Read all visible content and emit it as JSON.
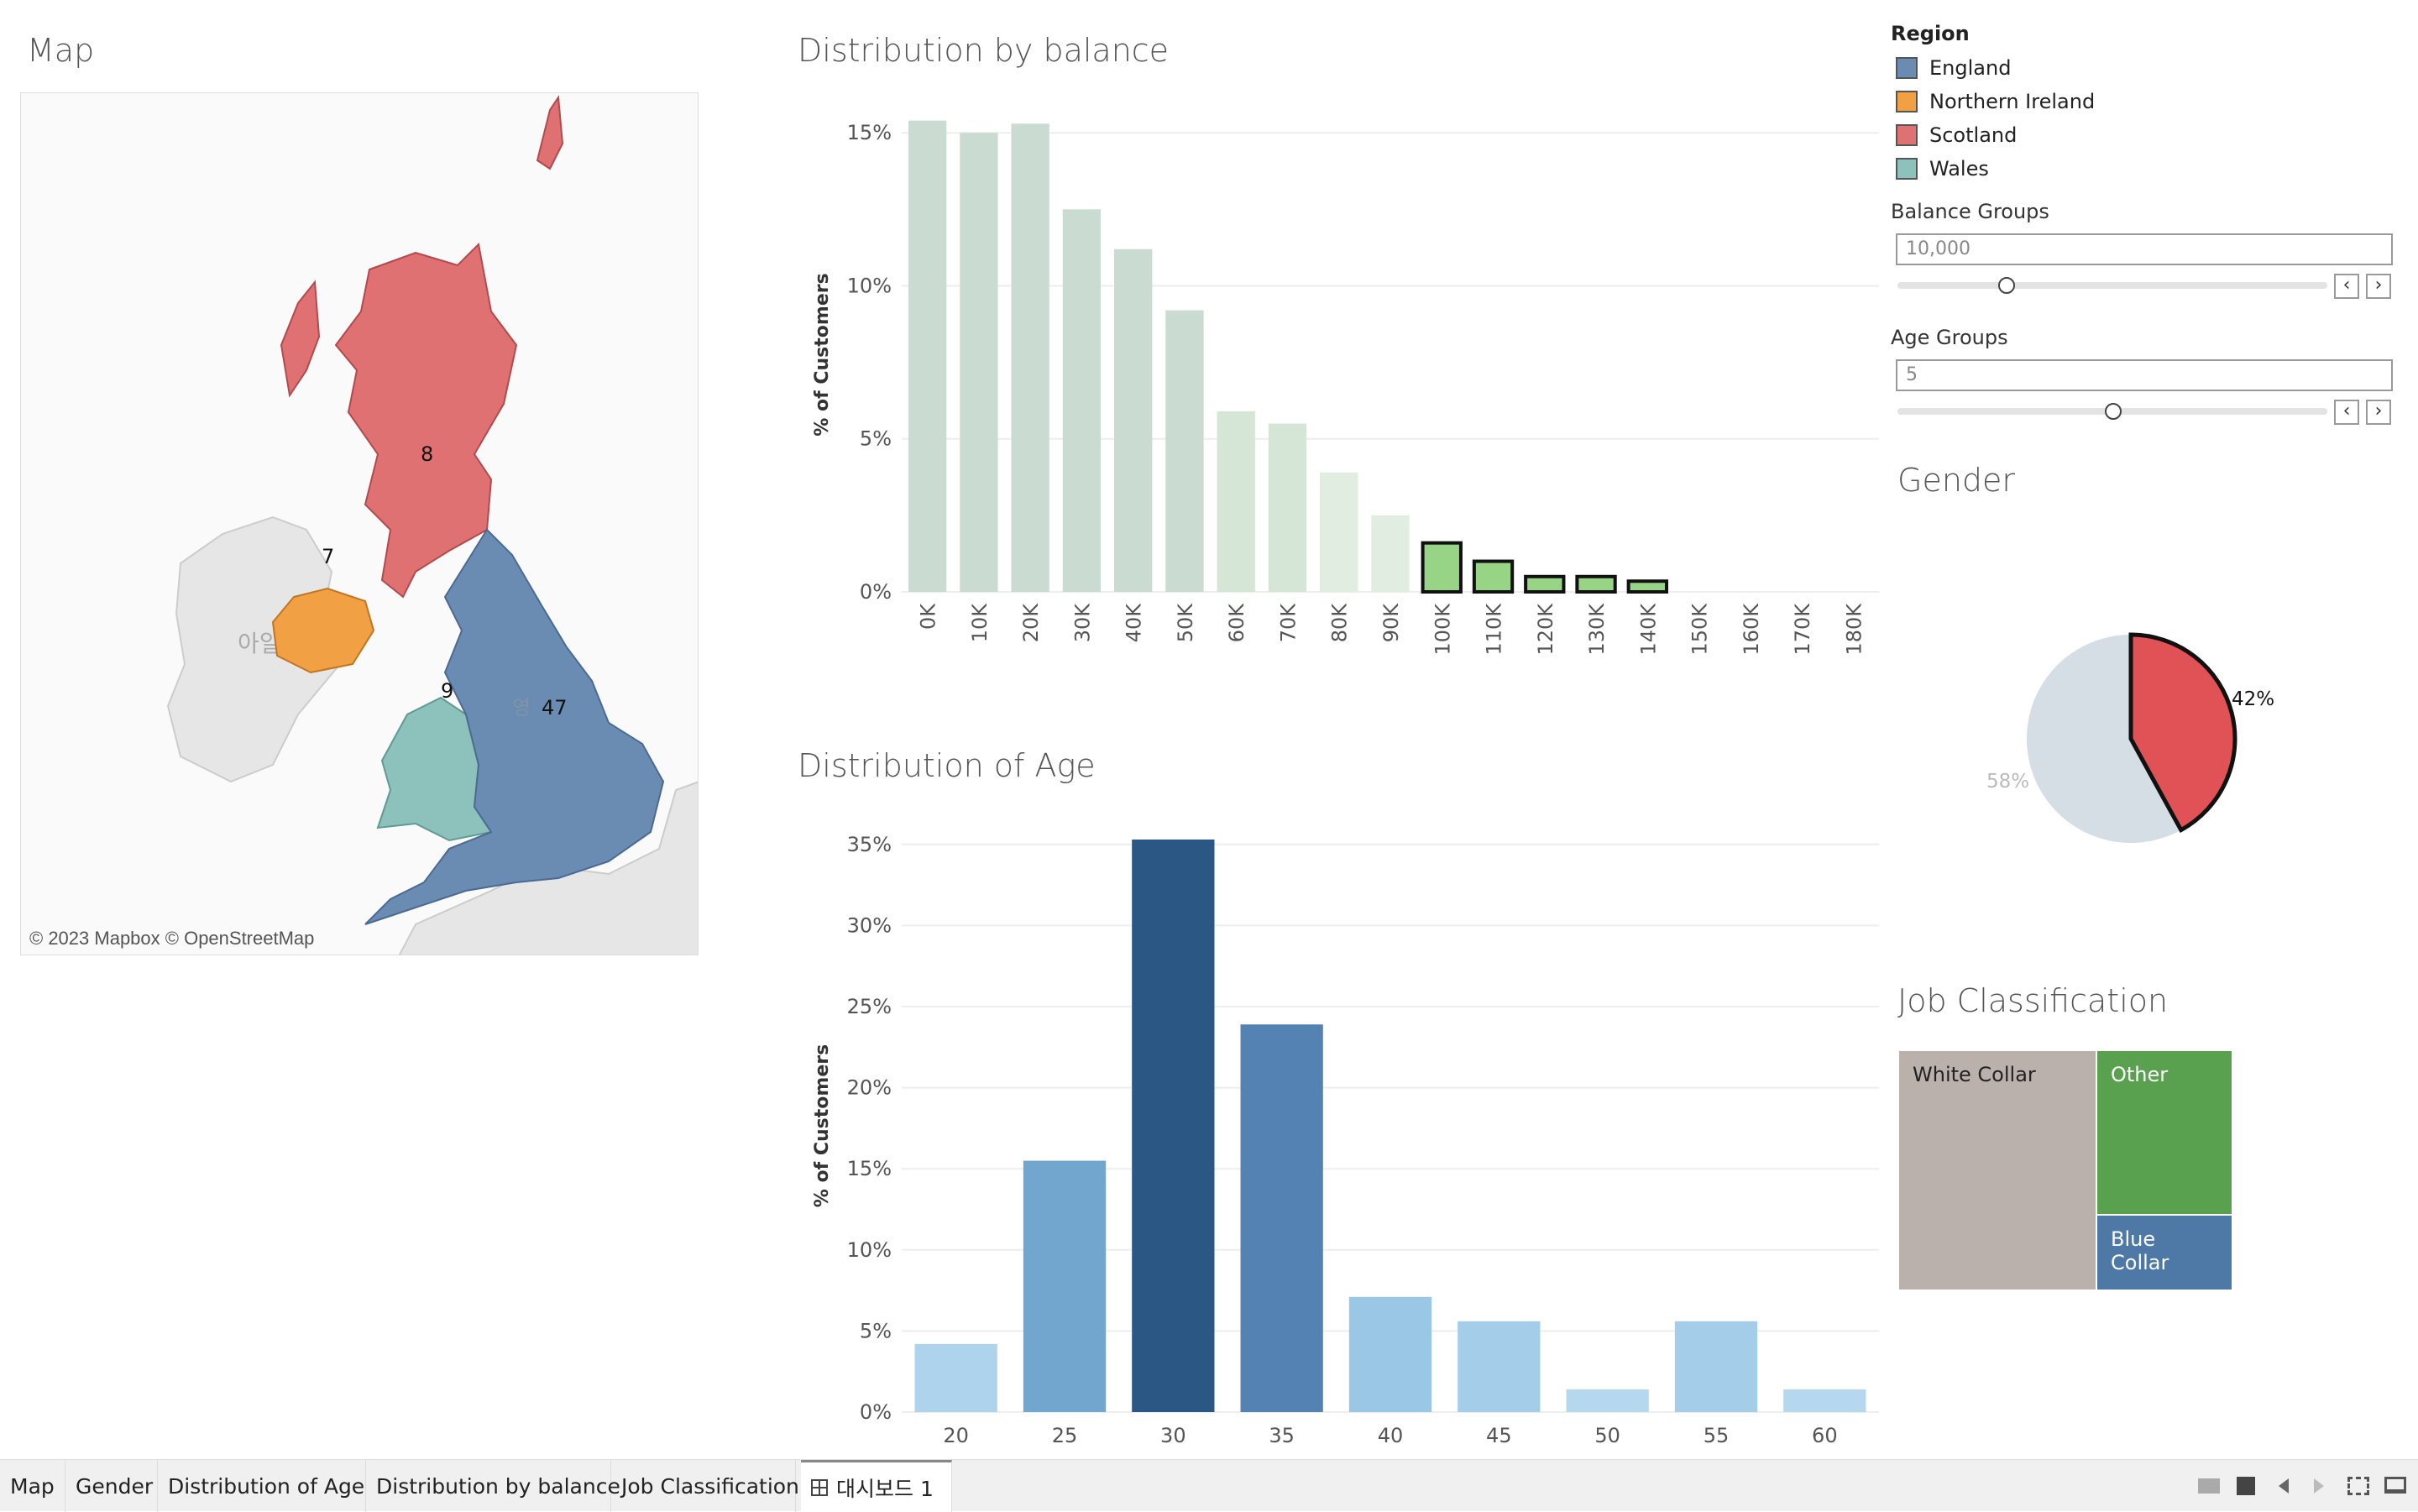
{
  "titles": {
    "map": "Map",
    "balance": "Distribution by balance",
    "age": "Distribution of Age",
    "gender": "Gender",
    "job": "Job Classification"
  },
  "map": {
    "credit": "© 2023 Mapbox © OpenStreetMap",
    "ireland_label": "아일랜드",
    "england_partial": "영",
    "regions": [
      {
        "name": "Scotland",
        "count": "8",
        "color": "#e07173"
      },
      {
        "name": "Northern Ireland",
        "count": "7",
        "color": "#f1a043"
      },
      {
        "name": "Wales",
        "count": "9",
        "color": "#8cc2bb"
      },
      {
        "name": "England",
        "count": "47",
        "color": "#6a8cb3"
      }
    ]
  },
  "legend": {
    "title": "Region",
    "items": [
      {
        "label": "England",
        "color": "#6a8cb3"
      },
      {
        "label": "Northern Ireland",
        "color": "#f1a043"
      },
      {
        "label": "Scotland",
        "color": "#e07173"
      },
      {
        "label": "Wales",
        "color": "#8cc2bb"
      }
    ]
  },
  "params": {
    "balance_label": "Balance Groups",
    "balance_value": "10,000",
    "age_label": "Age Groups",
    "age_value": "5",
    "prev": "‹",
    "next": "›"
  },
  "gender": {
    "female_pct": "42%",
    "male_pct": "58%",
    "female_value": 42,
    "female_color": "#e05255",
    "male_color": "#d5dde5"
  },
  "job": {
    "cells": [
      {
        "label": "White Collar",
        "color": "#bab0ac"
      },
      {
        "label": "Other",
        "color": "#59a14f"
      },
      {
        "label": "Blue Collar",
        "color": "#4e79a7"
      }
    ]
  },
  "tabs": [
    "Map",
    "Gender",
    "Distribution of Age",
    "Distribution by balance",
    "Job Classification",
    "대시보드 1"
  ],
  "chart_data": [
    {
      "type": "bar",
      "title": "Distribution by balance",
      "ylabel": "% of Customers",
      "categories": [
        "0K",
        "10K",
        "20K",
        "30K",
        "40K",
        "50K",
        "60K",
        "70K",
        "80K",
        "90K",
        "100K",
        "110K",
        "120K",
        "130K",
        "140K",
        "150K",
        "160K",
        "170K",
        "180K"
      ],
      "values": [
        15.4,
        15.0,
        15.3,
        12.5,
        11.2,
        9.2,
        5.9,
        5.5,
        3.9,
        2.5,
        1.6,
        1.0,
        0.5,
        0.5,
        0.35,
        0,
        0,
        0,
        0
      ],
      "highlighted": [
        false,
        false,
        false,
        false,
        false,
        false,
        false,
        false,
        false,
        false,
        true,
        true,
        true,
        true,
        true,
        false,
        false,
        false,
        false
      ],
      "yticks": [
        "0%",
        "5%",
        "10%",
        "15%"
      ],
      "ylim": [
        0,
        15.5
      ]
    },
    {
      "type": "bar",
      "title": "Distribution of Age",
      "ylabel": "% of Customers",
      "categories": [
        "20",
        "25",
        "30",
        "35",
        "40",
        "45",
        "50",
        "55",
        "60"
      ],
      "values": [
        4.2,
        15.5,
        35.3,
        23.9,
        7.1,
        5.6,
        1.4,
        5.6,
        1.4
      ],
      "colors": [
        "#aed3ec",
        "#72a6cf",
        "#2a5783",
        "#5483b3",
        "#9ac7e6",
        "#a3cde9",
        "#b6d8ef",
        "#a3cde9",
        "#b6d8ef"
      ],
      "yticks": [
        "0%",
        "5%",
        "10%",
        "15%",
        "20%",
        "25%",
        "30%",
        "35%"
      ],
      "ylim": [
        0,
        35.3
      ]
    }
  ]
}
